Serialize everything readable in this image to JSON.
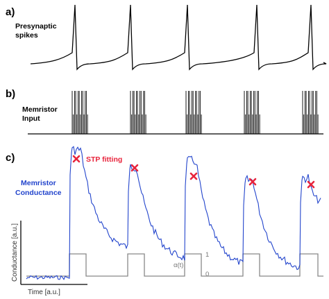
{
  "colors": {
    "conductance": "#2244cc",
    "stp_marker": "#e8243c",
    "pulse": "#888888",
    "black": "#000000"
  },
  "panels": {
    "a": {
      "label": "a)",
      "side_text": [
        "Presynaptic",
        "spikes"
      ]
    },
    "b": {
      "label": "b)",
      "side_text": [
        "Memristor",
        "Input"
      ]
    },
    "c": {
      "label": "c)",
      "series_label": [
        "Memristor",
        "Conductance"
      ],
      "marker_label": "STP fitting",
      "y_axis_label": "Conductance [a.u.]",
      "x_axis_label": "Time [a.u.]",
      "pulse_label": "α(t)",
      "pulse_level_high": "1",
      "pulse_level_low": "0"
    }
  },
  "chart_data": [
    {
      "type": "line",
      "title": "",
      "series": [
        {
          "values": "spike train, 5 action potentials"
        }
      ],
      "spike_times": [
        0.0,
        0.2,
        0.4,
        0.6,
        0.8
      ]
    },
    {
      "type": "bar",
      "title": "",
      "series": [
        {
          "values": "memristor input pulse bursts"
        }
      ],
      "burst_times": [
        0.0,
        0.2,
        0.4,
        0.6,
        0.8
      ]
    },
    {
      "type": "line",
      "title": "",
      "xlabel": "Time [a.u.]",
      "ylabel": "Conductance [a.u.]",
      "series": [
        {
          "name": "Memristor Conductance",
          "peaks": [
            0.95,
            0.85,
            0.75,
            0.7,
            0.68
          ]
        },
        {
          "name": "STP fitting",
          "points": [
            0.93,
            0.8,
            0.73,
            0.67,
            0.65
          ]
        },
        {
          "name": "α(t)",
          "levels": [
            0,
            1
          ]
        }
      ]
    }
  ]
}
